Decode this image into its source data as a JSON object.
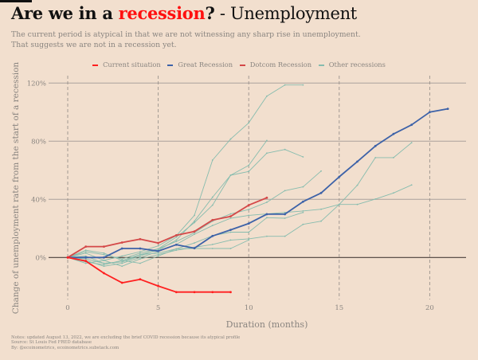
{
  "header": {
    "title_bold": "Are we in a ",
    "title_highlight": "recession",
    "title_bold_end": "?",
    "title_rest": " - Unemployment",
    "subtitle_line1": "The current period is atypical in that we are not witnessing any sharp rise in unemployment.",
    "subtitle_line2": "That suggests we are not in a recession yet."
  },
  "notes": {
    "line1": "Notes: updated August 13, 2022, we are excluding the brief COVID recession because its atypical profile",
    "line2": "Source: St Louis Fed FRED database",
    "line3": "By: @ecoinometrics, ecoinometrics.substack.com"
  },
  "colors": {
    "background": "#f2dfce",
    "current": "#ff1f1f",
    "great": "#3d62a8",
    "dotcom": "#d44848",
    "other": "#86bcae",
    "title_highlight": "#ff1010"
  },
  "chart_data": {
    "type": "line",
    "xlabel": "Duration (months)",
    "ylabel": "Change of unemployment rate from the start of a recession",
    "xlim": [
      -0.7,
      22
    ],
    "ylim": [
      -30,
      130
    ],
    "xticks": [
      0,
      5,
      10,
      15,
      20
    ],
    "xtick_labels": [
      "0",
      "5",
      "10",
      "15",
      "20"
    ],
    "yticks": [
      0,
      40,
      80,
      120
    ],
    "ytick_labels": [
      "0%",
      "40%",
      "80%",
      "120%"
    ],
    "grid": "horizontal solid, vertical dashed",
    "legend_position": "top-center",
    "legend": [
      "Current situation",
      "Great Recession",
      "Dotcom Recession",
      "Other recessions"
    ],
    "series": [
      {
        "name": "Other recessions",
        "key": "other",
        "values": [
          0,
          3,
          -2,
          1,
          4,
          8,
          15,
          29,
          67,
          81.5,
          92.6,
          111,
          118.7,
          118.7
        ]
      },
      {
        "name": "Other recessions",
        "key": "other",
        "values": [
          0,
          -3,
          -5,
          -2,
          2,
          5,
          12,
          25,
          41.5,
          56.6,
          63.4,
          80.5
        ]
      },
      {
        "name": "Other recessions",
        "key": "other",
        "values": [
          0,
          4,
          2,
          -1,
          3,
          6,
          14,
          24,
          36,
          56.6,
          59.2,
          71.8,
          74.3,
          69.2
        ]
      },
      {
        "name": "Other recessions",
        "key": "other",
        "values": [
          0,
          1,
          -4,
          -3,
          1,
          6,
          11,
          17,
          25,
          30,
          33,
          38,
          46,
          48.6,
          59.5
        ]
      },
      {
        "name": "Other recessions",
        "key": "other",
        "values": [
          0,
          -2,
          -6,
          -4,
          0,
          4,
          9,
          16,
          22,
          27,
          29,
          30,
          31,
          32,
          33.2,
          36.5,
          36.5,
          40.2,
          44.4,
          49.9
        ]
      },
      {
        "name": "Other recessions",
        "key": "other",
        "values": [
          0,
          -4,
          -2,
          -6,
          -1,
          2,
          5,
          7,
          9,
          12,
          12.8,
          14.6,
          14.6,
          22.8,
          25,
          36.5,
          49.7,
          68.7,
          68.7,
          79
        ]
      },
      {
        "name": "Other recessions",
        "key": "other",
        "values": [
          0,
          5,
          3,
          -2,
          -4,
          1,
          6,
          6.2,
          6.2,
          6.2,
          12
        ]
      },
      {
        "name": "Other recessions",
        "key": "other",
        "values": [
          0,
          -1,
          -4,
          -3,
          2,
          3,
          6,
          10,
          15,
          17.4,
          17.4,
          27.4,
          27,
          31
        ]
      },
      {
        "name": "Dotcom Recession",
        "key": "dotcom",
        "values": [
          0,
          7.5,
          7.5,
          10.3,
          12.6,
          10,
          15.3,
          17.9,
          25.8,
          28.3,
          36,
          41.1
        ]
      },
      {
        "name": "Great Recession",
        "key": "great",
        "values": [
          0,
          0,
          0,
          6.2,
          6.2,
          4.4,
          8.8,
          6.4,
          14.8,
          19,
          23.4,
          29.8,
          29.8,
          38.4,
          44.4,
          55.5,
          66,
          76.7,
          85,
          91.3,
          100,
          102.3
        ]
      },
      {
        "name": "Current situation",
        "key": "current",
        "values": [
          0,
          -2.4,
          -10.8,
          -17.4,
          -15,
          -19.6,
          -23.8,
          -23.8,
          -23.8,
          -23.8
        ]
      }
    ]
  }
}
